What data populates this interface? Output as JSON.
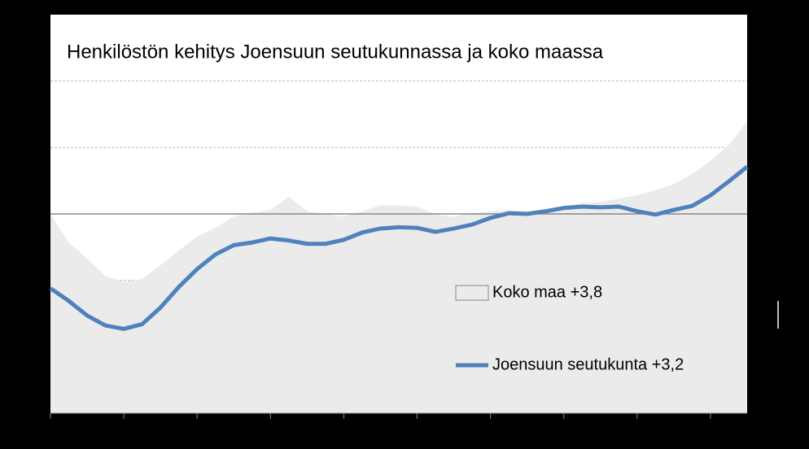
{
  "chart_data": {
    "type": "area-line",
    "title": "Henkilöstön kehitys Joensuun seutukunnassa ja koko maassa",
    "x": [
      0,
      0.25,
      0.5,
      0.75,
      1,
      1.25,
      1.5,
      1.75,
      2,
      2.25,
      2.5,
      2.75,
      3,
      3.25,
      3.5,
      3.75,
      4,
      4.25,
      4.5,
      4.75,
      5,
      5.25,
      5.5,
      5.75,
      6,
      6.25,
      6.5,
      6.75,
      7,
      7.25,
      7.5,
      7.75,
      8,
      8.25,
      8.5,
      8.75,
      9,
      9.25,
      9.5
    ],
    "xlim": [
      0,
      9.5
    ],
    "xticks": [
      0,
      1,
      2,
      3,
      4,
      5,
      6,
      7,
      8,
      9
    ],
    "ylim": [
      -3,
      3
    ],
    "yticks": [
      -2,
      -1,
      0,
      1,
      2
    ],
    "grid": true,
    "legend": "right",
    "series": [
      {
        "name": "Koko maa +3,8",
        "kind": "area",
        "color": "#ebebeb",
        "values": [
          0,
          -0.43,
          -0.67,
          -0.94,
          -1.02,
          -0.98,
          -0.77,
          -0.55,
          -0.34,
          -0.21,
          -0.04,
          0.02,
          0.06,
          0.26,
          0.04,
          0,
          -0.04,
          0.04,
          0.13,
          0.13,
          0.11,
          -0.01,
          -0.04,
          0.01,
          0.04,
          0.06,
          0.04,
          0.07,
          0.12,
          0.16,
          0.18,
          0.23,
          0.28,
          0.36,
          0.45,
          0.6,
          0.8,
          1.04,
          1.39
        ]
      },
      {
        "name": "Joensuun seutukunta +3,2",
        "kind": "line",
        "color": "#4f81bd",
        "values": [
          -1.12,
          -1.31,
          -1.53,
          -1.68,
          -1.73,
          -1.66,
          -1.41,
          -1.1,
          -0.83,
          -0.61,
          -0.47,
          -0.43,
          -0.37,
          -0.4,
          -0.45,
          -0.45,
          -0.39,
          -0.28,
          -0.22,
          -0.2,
          -0.21,
          -0.27,
          -0.22,
          -0.16,
          -0.06,
          0.01,
          0,
          0.04,
          0.09,
          0.11,
          0.1,
          0.11,
          0.04,
          -0.01,
          0.06,
          0.12,
          0.28,
          0.49,
          0.71
        ]
      }
    ]
  }
}
